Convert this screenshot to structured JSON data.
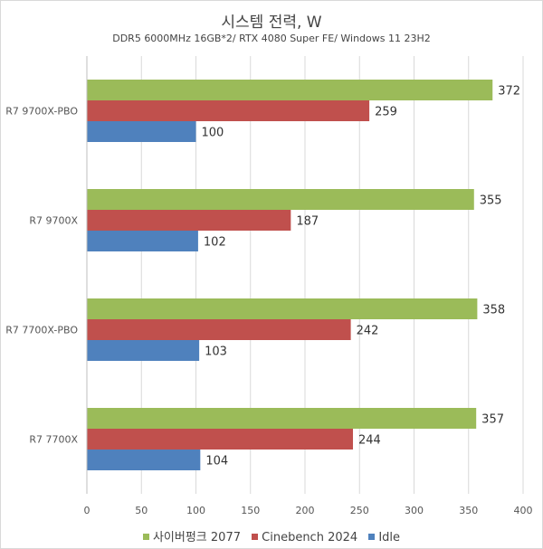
{
  "chart_data": {
    "type": "bar",
    "orientation": "horizontal",
    "title": "시스템 전력, W",
    "subtitle": "DDR5 6000MHz 16GB*2/ RTX 4080 Super FE/ Windows 11 23H2",
    "categories": [
      "R7 9700X-PBO",
      "R7 9700X",
      "R7 7700X-PBO",
      "R7 7700X"
    ],
    "series": [
      {
        "name": "사이버펑크 2077",
        "color": "#9bbb59",
        "values": [
          372,
          355,
          358,
          357
        ]
      },
      {
        "name": "Cinebench 2024",
        "color": "#c0504d",
        "values": [
          259,
          187,
          242,
          244
        ]
      },
      {
        "name": "Idle",
        "color": "#4f81bd",
        "values": [
          100,
          102,
          103,
          104
        ]
      }
    ],
    "xlim": [
      0,
      400
    ],
    "xticks": [
      0,
      50,
      100,
      150,
      200,
      250,
      300,
      350,
      400
    ],
    "grid": "vertical",
    "legend_position": "bottom"
  }
}
